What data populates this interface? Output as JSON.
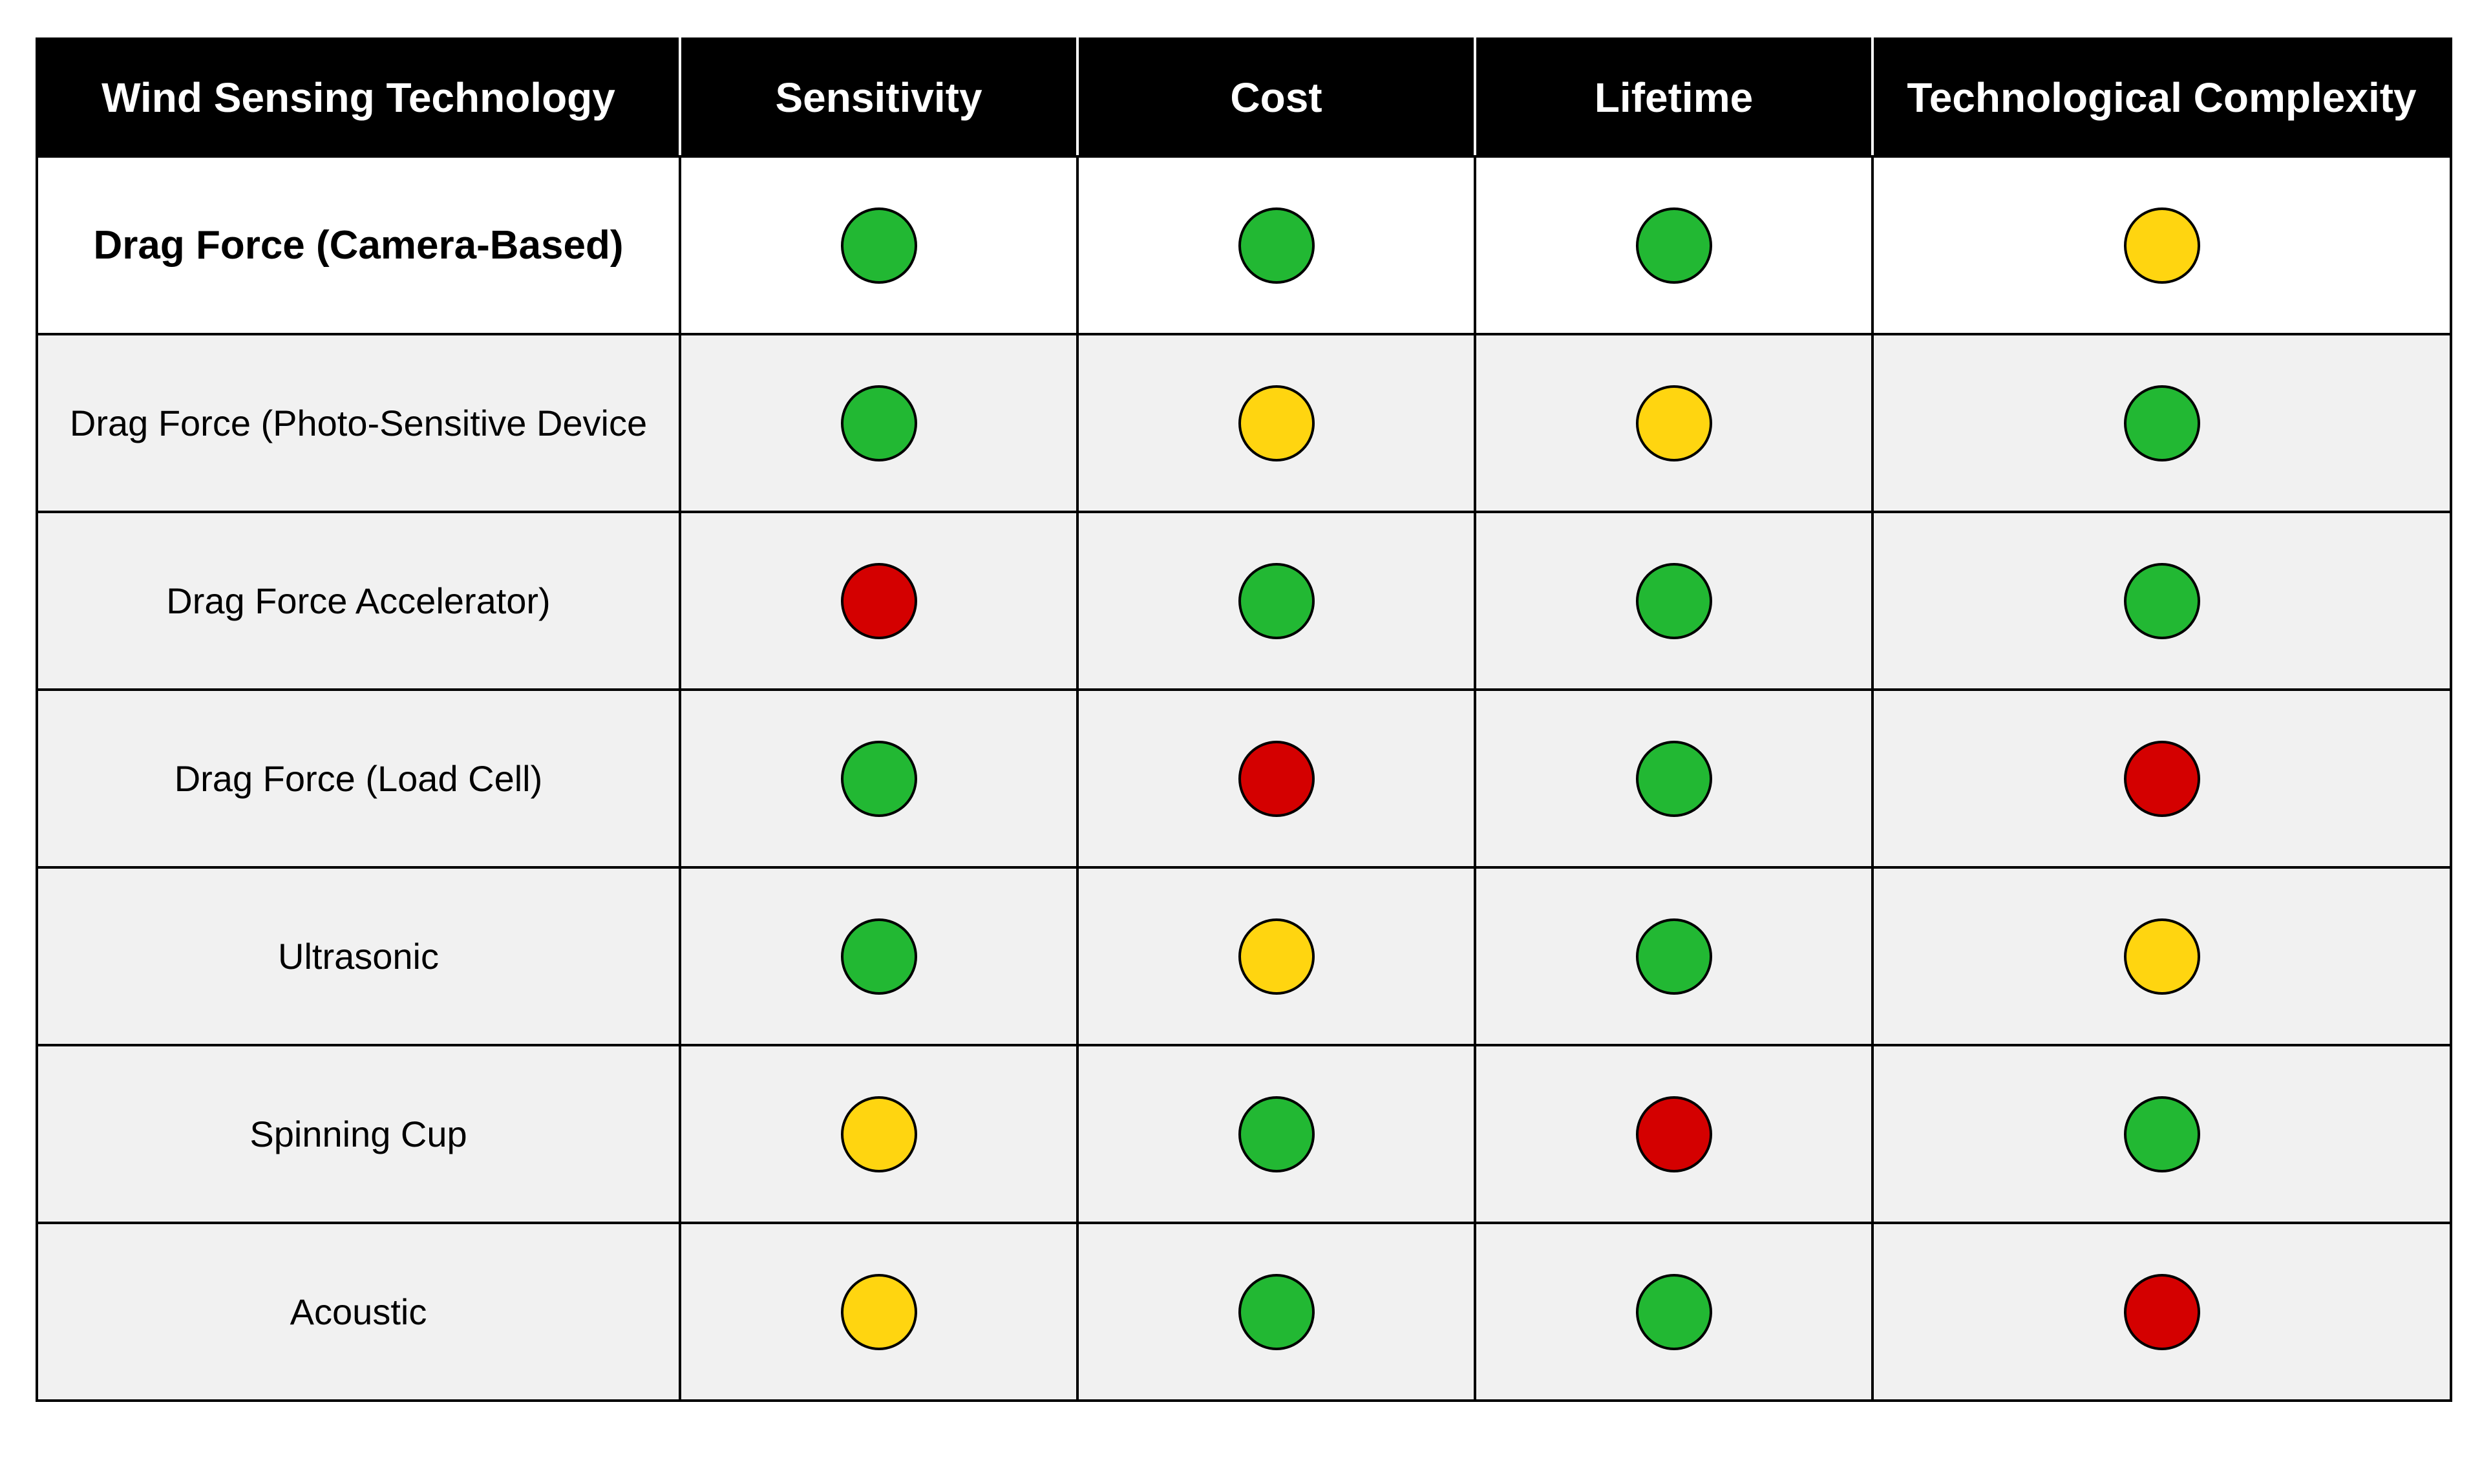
{
  "chart_data": {
    "type": "table",
    "columns": [
      "Wind Sensing Technology",
      "Sensitivity",
      "Cost",
      "Lifetime",
      "Technological Complexity"
    ],
    "rating_colors": {
      "green": "#22b833",
      "yellow": "#ffd510",
      "red": "#d40000"
    },
    "rows": [
      {
        "technology": "Drag Force (Camera-Based)",
        "highlight": true,
        "ratings": [
          "green",
          "green",
          "green",
          "yellow"
        ]
      },
      {
        "technology": "Drag Force (Photo-Sensitive Device",
        "highlight": false,
        "ratings": [
          "green",
          "yellow",
          "yellow",
          "green"
        ]
      },
      {
        "technology": "Drag Force Accelerator)",
        "highlight": false,
        "ratings": [
          "red",
          "green",
          "green",
          "green"
        ]
      },
      {
        "technology": "Drag Force (Load Cell)",
        "highlight": false,
        "ratings": [
          "green",
          "red",
          "green",
          "red"
        ]
      },
      {
        "technology": "Ultrasonic",
        "highlight": false,
        "ratings": [
          "green",
          "yellow",
          "green",
          "yellow"
        ]
      },
      {
        "technology": "Spinning Cup",
        "highlight": false,
        "ratings": [
          "yellow",
          "green",
          "red",
          "green"
        ]
      },
      {
        "technology": "Acoustic",
        "highlight": false,
        "ratings": [
          "yellow",
          "green",
          "green",
          "red"
        ]
      }
    ]
  }
}
